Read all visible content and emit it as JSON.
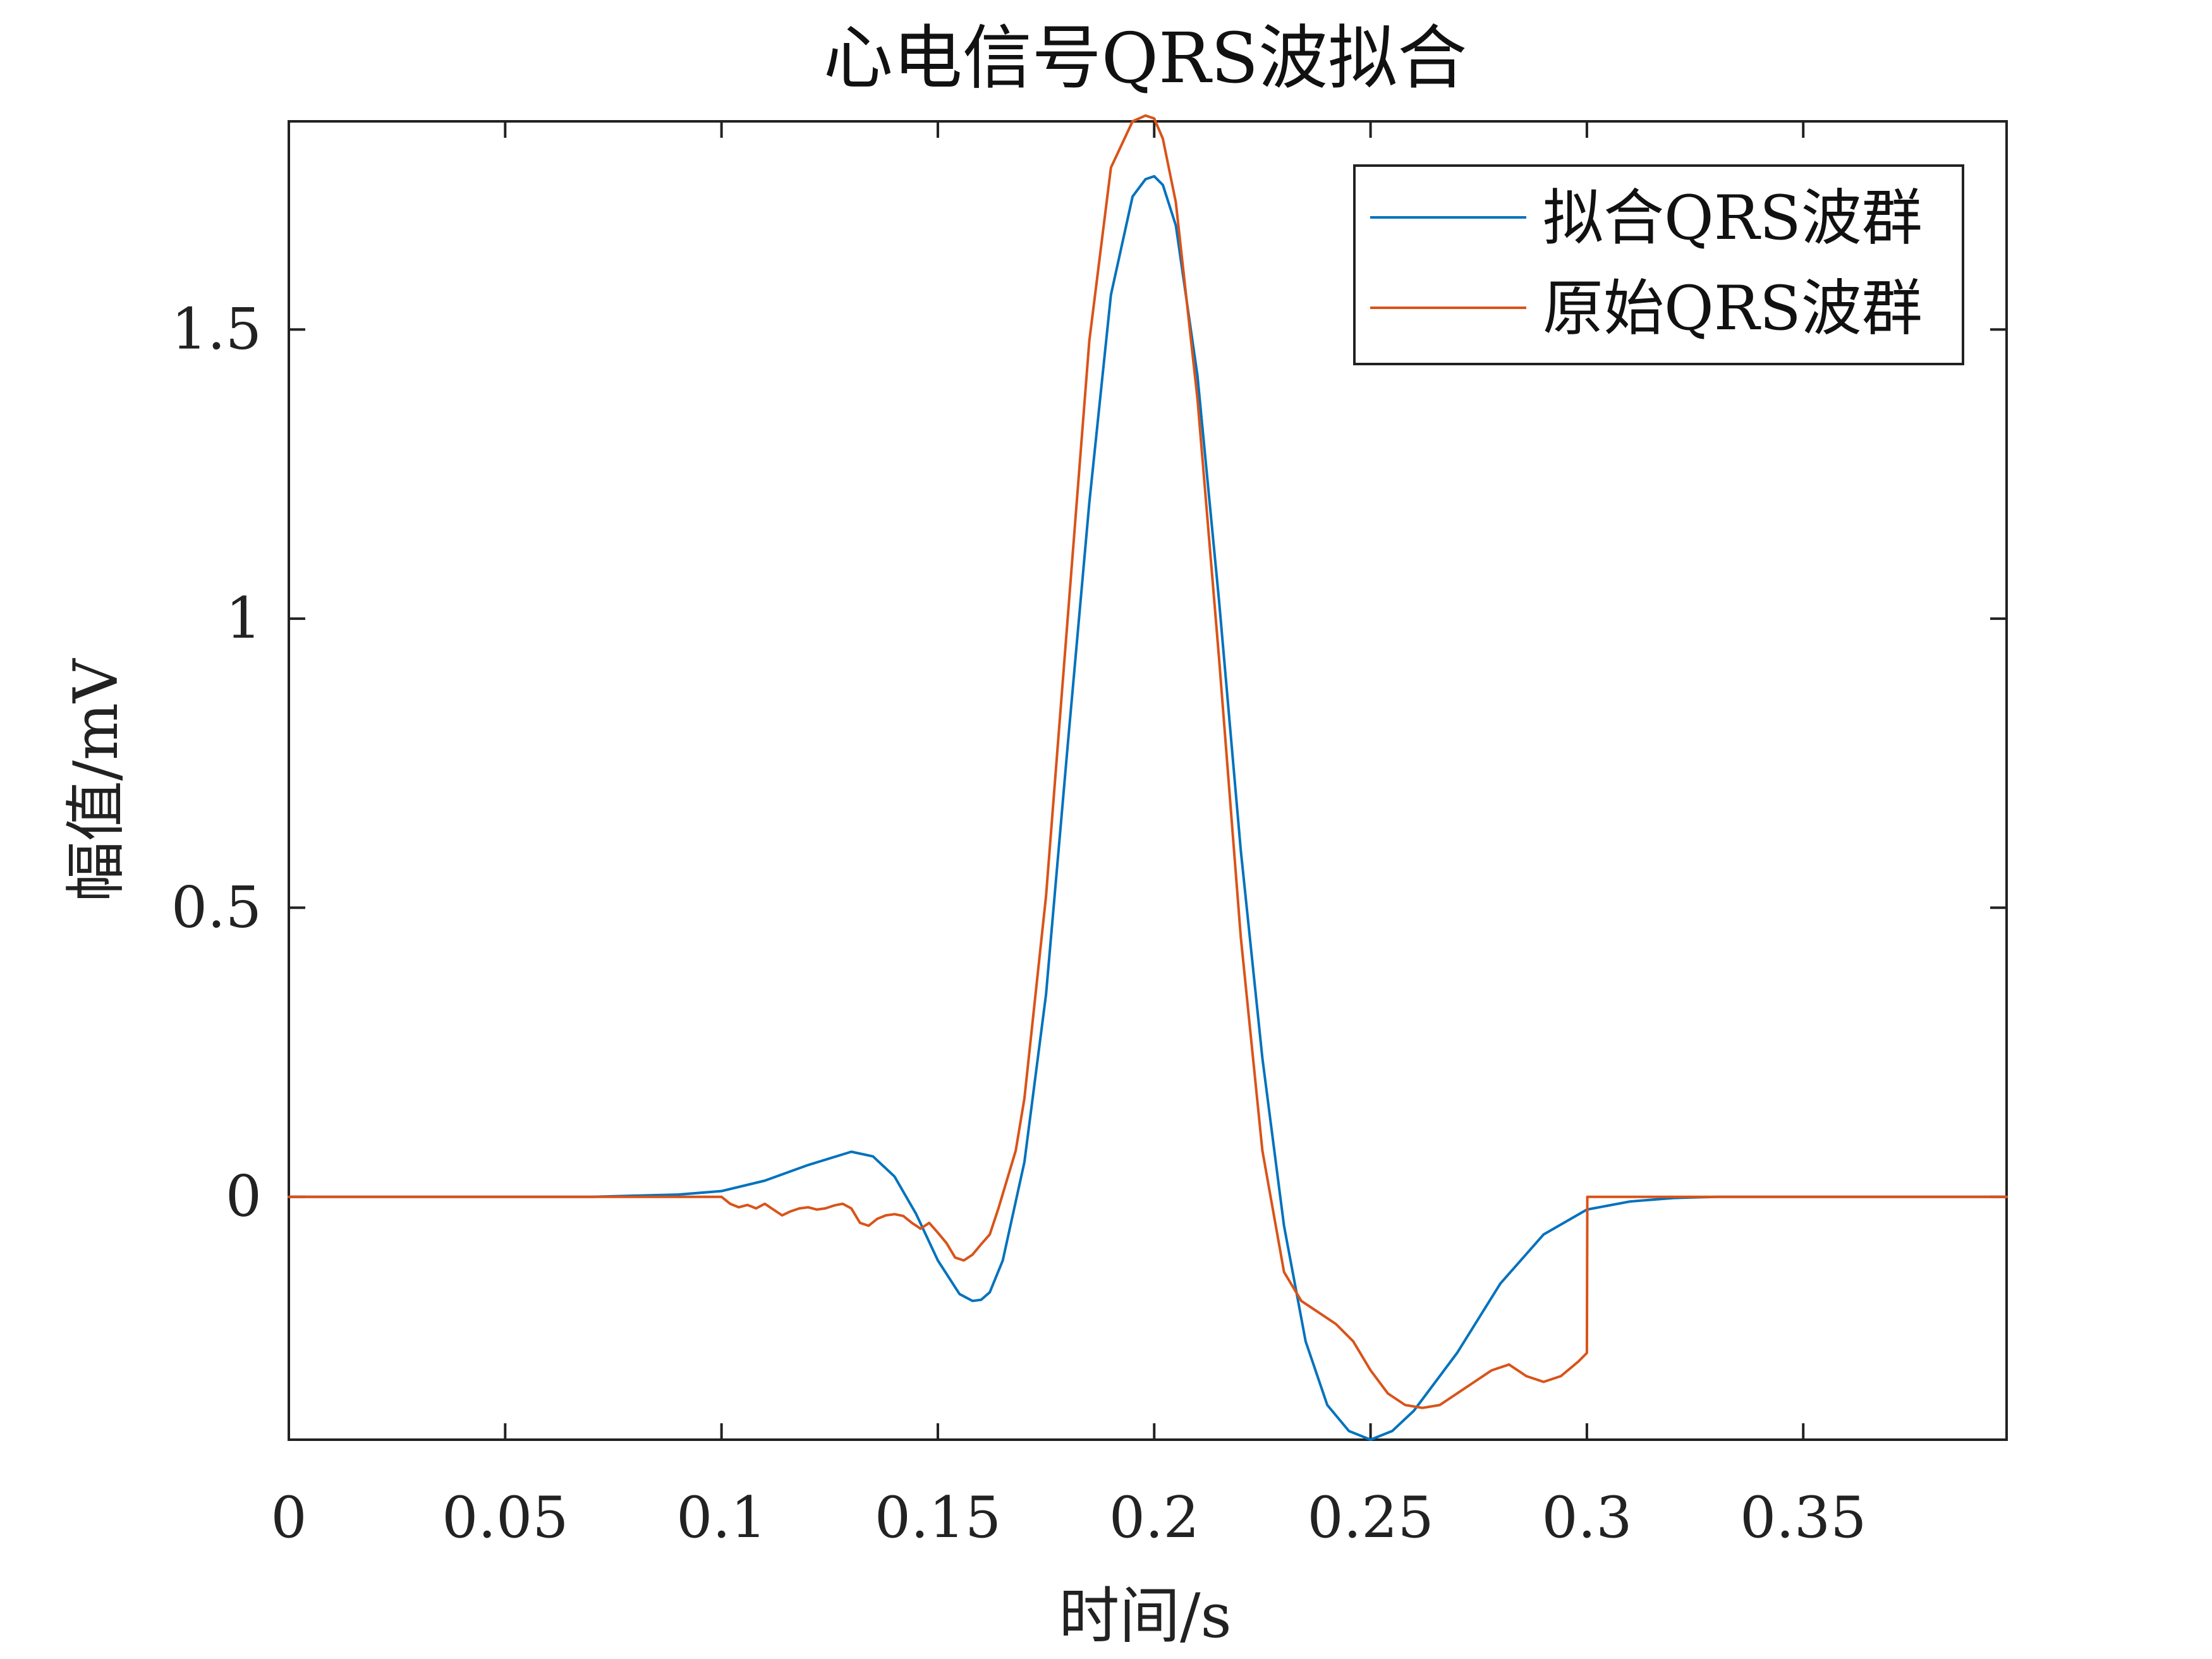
{
  "chart_data": {
    "type": "line",
    "title": "心电信号QRS波拟合",
    "xlabel": "时间/s",
    "ylabel": "幅值/mV",
    "xlim": [
      0,
      0.397
    ],
    "ylim": [
      -0.42,
      1.86
    ],
    "xticks": [
      0,
      0.05,
      0.1,
      0.15,
      0.2,
      0.25,
      0.3,
      0.35
    ],
    "xtick_labels": [
      "0",
      "0.05",
      "0.1",
      "0.15",
      "0.2",
      "0.25",
      "0.3",
      "0.35"
    ],
    "yticks": [
      0,
      0.5,
      1,
      1.5
    ],
    "ytick_labels": [
      "0",
      "0.5",
      "1",
      "1.5"
    ],
    "grid": false,
    "legend_position": "top-right",
    "series": [
      {
        "name": "拟合QRS波群",
        "color": "#0072BD",
        "x": [
          0,
          0.07,
          0.08,
          0.09,
          0.1,
          0.11,
          0.12,
          0.13,
          0.135,
          0.14,
          0.145,
          0.15,
          0.155,
          0.158,
          0.16,
          0.162,
          0.165,
          0.17,
          0.175,
          0.18,
          0.185,
          0.19,
          0.195,
          0.198,
          0.2,
          0.202,
          0.205,
          0.21,
          0.215,
          0.22,
          0.225,
          0.23,
          0.235,
          0.24,
          0.245,
          0.25,
          0.255,
          0.26,
          0.27,
          0.28,
          0.29,
          0.3,
          0.31,
          0.32,
          0.33,
          0.35,
          0.397
        ],
        "y": [
          0,
          0,
          0.002,
          0.004,
          0.01,
          0.028,
          0.055,
          0.078,
          0.07,
          0.035,
          -0.03,
          -0.11,
          -0.168,
          -0.18,
          -0.178,
          -0.165,
          -0.11,
          0.06,
          0.35,
          0.78,
          1.2,
          1.56,
          1.73,
          1.76,
          1.765,
          1.75,
          1.68,
          1.42,
          1.03,
          0.6,
          0.24,
          -0.05,
          -0.25,
          -0.36,
          -0.405,
          -0.42,
          -0.405,
          -0.37,
          -0.27,
          -0.15,
          -0.065,
          -0.022,
          -0.008,
          -0.002,
          0,
          0,
          0
        ]
      },
      {
        "name": "原始QRS波群",
        "color": "#D95319",
        "x": [
          0,
          0.1,
          0.102,
          0.104,
          0.106,
          0.108,
          0.11,
          0.112,
          0.114,
          0.116,
          0.118,
          0.12,
          0.122,
          0.124,
          0.126,
          0.128,
          0.13,
          0.132,
          0.134,
          0.136,
          0.138,
          0.14,
          0.142,
          0.144,
          0.146,
          0.148,
          0.15,
          0.152,
          0.154,
          0.156,
          0.158,
          0.16,
          0.162,
          0.164,
          0.166,
          0.168,
          0.17,
          0.175,
          0.18,
          0.185,
          0.19,
          0.195,
          0.198,
          0.2,
          0.202,
          0.205,
          0.21,
          0.215,
          0.22,
          0.225,
          0.23,
          0.234,
          0.238,
          0.242,
          0.246,
          0.25,
          0.254,
          0.258,
          0.262,
          0.266,
          0.27,
          0.274,
          0.278,
          0.282,
          0.286,
          0.29,
          0.294,
          0.298,
          0.3,
          0.3001,
          0.32,
          0.397
        ],
        "y": [
          0,
          0,
          -0.012,
          -0.018,
          -0.014,
          -0.02,
          -0.012,
          -0.022,
          -0.032,
          -0.025,
          -0.02,
          -0.018,
          -0.022,
          -0.02,
          -0.015,
          -0.012,
          -0.02,
          -0.045,
          -0.05,
          -0.038,
          -0.032,
          -0.03,
          -0.033,
          -0.045,
          -0.055,
          -0.045,
          -0.062,
          -0.08,
          -0.105,
          -0.11,
          -0.1,
          -0.082,
          -0.065,
          -0.02,
          0.03,
          0.08,
          0.17,
          0.52,
          1.0,
          1.48,
          1.78,
          1.86,
          1.87,
          1.865,
          1.83,
          1.72,
          1.38,
          0.93,
          0.45,
          0.08,
          -0.13,
          -0.18,
          -0.2,
          -0.22,
          -0.25,
          -0.3,
          -0.34,
          -0.36,
          -0.365,
          -0.36,
          -0.34,
          -0.32,
          -0.3,
          -0.29,
          -0.31,
          -0.32,
          -0.31,
          -0.285,
          -0.27,
          0,
          0,
          0
        ]
      }
    ]
  }
}
